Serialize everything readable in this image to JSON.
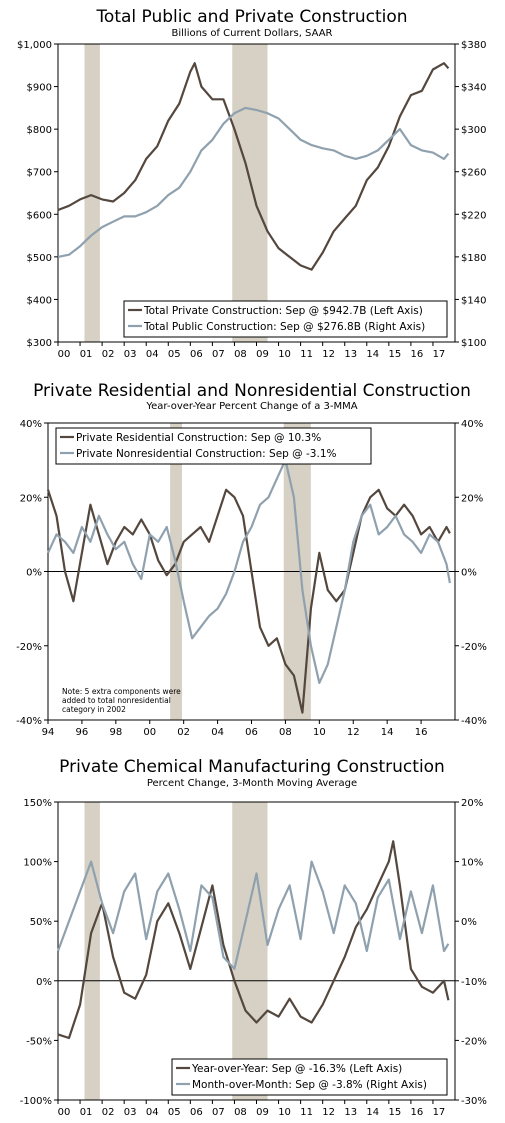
{
  "colors": {
    "primary": "#54473e",
    "secondary": "#8fa1ae",
    "recession": "#d6d1c4",
    "axis": "#000000"
  },
  "chart_data": [
    {
      "type": "line",
      "title": "Total Public and Private Construction",
      "subtitle": "Billions of Current Dollars, SAAR",
      "xlabel": "",
      "ylabel": "",
      "x_ticks": [
        "00",
        "01",
        "02",
        "03",
        "04",
        "05",
        "06",
        "07",
        "08",
        "09",
        "10",
        "11",
        "12",
        "13",
        "14",
        "15",
        "16",
        "17"
      ],
      "xlim": [
        2000.0,
        2018.0
      ],
      "left_axis": {
        "ylim": [
          300,
          1000
        ],
        "ticks": [
          "$300",
          "$400",
          "$500",
          "$600",
          "$700",
          "$800",
          "$900",
          "$1,000"
        ]
      },
      "right_axis": {
        "ylim": [
          100,
          380
        ],
        "ticks": [
          "$100",
          "$140",
          "$180",
          "$220",
          "$260",
          "$300",
          "$340",
          "$380"
        ]
      },
      "recessions": [
        [
          2001.2,
          2001.9
        ],
        [
          2007.9,
          2009.5
        ]
      ],
      "legend_placement": "bottom-right",
      "series": [
        {
          "name": "Total Private Construction: Sep @ $942.7B (Left Axis)",
          "axis": "left",
          "color": "primary",
          "x": [
            2000.0,
            2000.5,
            2001.0,
            2001.5,
            2002.0,
            2002.5,
            2003.0,
            2003.5,
            2004.0,
            2004.5,
            2005.0,
            2005.5,
            2006.0,
            2006.2,
            2006.5,
            2007.0,
            2007.5,
            2008.0,
            2008.5,
            2009.0,
            2009.5,
            2010.0,
            2010.5,
            2011.0,
            2011.5,
            2012.0,
            2012.5,
            2013.0,
            2013.5,
            2014.0,
            2014.5,
            2015.0,
            2015.5,
            2016.0,
            2016.5,
            2017.0,
            2017.5,
            2017.7
          ],
          "values": [
            610,
            620,
            635,
            645,
            635,
            630,
            650,
            680,
            730,
            760,
            820,
            860,
            935,
            955,
            900,
            870,
            870,
            800,
            720,
            620,
            560,
            520,
            500,
            480,
            470,
            510,
            560,
            590,
            620,
            680,
            710,
            760,
            830,
            880,
            890,
            940,
            955,
            943
          ]
        },
        {
          "name": "Total Public Construction: Sep @ $276.8B (Right Axis)",
          "axis": "right",
          "color": "secondary",
          "x": [
            2000.0,
            2000.5,
            2001.0,
            2001.5,
            2002.0,
            2002.5,
            2003.0,
            2003.5,
            2004.0,
            2004.5,
            2005.0,
            2005.5,
            2006.0,
            2006.5,
            2007.0,
            2007.5,
            2008.0,
            2008.5,
            2009.0,
            2009.5,
            2010.0,
            2010.5,
            2011.0,
            2011.5,
            2012.0,
            2012.5,
            2013.0,
            2013.5,
            2014.0,
            2014.5,
            2015.0,
            2015.5,
            2016.0,
            2016.5,
            2017.0,
            2017.5,
            2017.7
          ],
          "values": [
            180,
            182,
            190,
            200,
            208,
            213,
            218,
            218,
            222,
            228,
            238,
            245,
            260,
            280,
            290,
            305,
            315,
            320,
            318,
            315,
            310,
            300,
            290,
            285,
            282,
            280,
            275,
            272,
            275,
            280,
            290,
            300,
            285,
            280,
            278,
            272,
            277
          ]
        }
      ]
    },
    {
      "type": "line",
      "title": "Private Residential and Nonresidential Construction",
      "subtitle": "Year-over-Year Percent Change of a 3-MMA",
      "xlabel": "",
      "ylabel": "",
      "x_ticks": [
        "94",
        "96",
        "98",
        "00",
        "02",
        "04",
        "06",
        "08",
        "10",
        "12",
        "14",
        "16"
      ],
      "xlim": [
        1994.0,
        2018.0
      ],
      "left_axis": {
        "ylim": [
          -40,
          40
        ],
        "ticks": [
          "-40%",
          "-20%",
          "0%",
          "20%",
          "40%"
        ]
      },
      "right_axis": {
        "ylim": [
          -40,
          40
        ],
        "ticks": [
          "-40%",
          "-20%",
          "0%",
          "20%",
          "40%"
        ]
      },
      "recessions": [
        [
          2001.2,
          2001.9
        ],
        [
          2007.9,
          2009.5
        ]
      ],
      "legend_placement": "top-left",
      "note": "Note: 5 extra components were added to total nonresidential category in 2002",
      "series": [
        {
          "name": "Private Residential Construction: Sep @ 10.3%",
          "color": "primary",
          "x": [
            1994.0,
            1994.5,
            1995.0,
            1995.5,
            1996.0,
            1996.5,
            1997.0,
            1997.5,
            1998.0,
            1998.5,
            1999.0,
            1999.5,
            2000.0,
            2000.5,
            2001.0,
            2001.5,
            2002.0,
            2002.5,
            2003.0,
            2003.5,
            2004.0,
            2004.5,
            2005.0,
            2005.5,
            2006.0,
            2006.5,
            2007.0,
            2007.5,
            2008.0,
            2008.5,
            2009.0,
            2009.5,
            2010.0,
            2010.5,
            2011.0,
            2011.5,
            2012.0,
            2012.5,
            2013.0,
            2013.5,
            2014.0,
            2014.5,
            2015.0,
            2015.5,
            2016.0,
            2016.5,
            2017.0,
            2017.5,
            2017.7
          ],
          "values": [
            22,
            15,
            0,
            -8,
            5,
            18,
            10,
            2,
            8,
            12,
            10,
            14,
            10,
            3,
            -1,
            2,
            8,
            10,
            12,
            8,
            15,
            22,
            20,
            15,
            0,
            -15,
            -20,
            -18,
            -25,
            -28,
            -38,
            -10,
            5,
            -5,
            -8,
            -5,
            5,
            15,
            20,
            22,
            17,
            15,
            18,
            15,
            10,
            12,
            8,
            12,
            10.3
          ]
        },
        {
          "name": "Private Nonresidential Construction: Sep @ -3.1%",
          "color": "secondary",
          "x": [
            1994.0,
            1994.5,
            1995.0,
            1995.5,
            1996.0,
            1996.5,
            1997.0,
            1997.5,
            1998.0,
            1998.5,
            1999.0,
            1999.5,
            2000.0,
            2000.5,
            2001.0,
            2001.5,
            2002.0,
            2002.5,
            2003.0,
            2003.5,
            2004.0,
            2004.5,
            2005.0,
            2005.5,
            2006.0,
            2006.5,
            2007.0,
            2007.5,
            2008.0,
            2008.5,
            2009.0,
            2009.5,
            2010.0,
            2010.5,
            2011.0,
            2011.5,
            2012.0,
            2012.5,
            2013.0,
            2013.5,
            2014.0,
            2014.5,
            2015.0,
            2015.5,
            2016.0,
            2016.5,
            2017.0,
            2017.5,
            2017.7
          ],
          "values": [
            5,
            10,
            8,
            5,
            12,
            8,
            15,
            10,
            6,
            8,
            2,
            -2,
            10,
            8,
            12,
            3,
            -8,
            -18,
            -15,
            -12,
            -10,
            -6,
            0,
            8,
            12,
            18,
            20,
            25,
            30,
            20,
            -5,
            -20,
            -30,
            -25,
            -15,
            -5,
            8,
            15,
            18,
            10,
            12,
            15,
            10,
            8,
            5,
            10,
            8,
            2,
            -3.1
          ]
        }
      ]
    },
    {
      "type": "line",
      "title": "Private Chemical Manufacturing Construction",
      "subtitle": "Percent Change, 3-Month Moving Average",
      "xlabel": "",
      "ylabel": "",
      "x_ticks": [
        "00",
        "01",
        "02",
        "03",
        "04",
        "05",
        "06",
        "07",
        "08",
        "09",
        "10",
        "11",
        "12",
        "13",
        "14",
        "15",
        "16",
        "17"
      ],
      "xlim": [
        2000.0,
        2018.0
      ],
      "left_axis": {
        "ylim": [
          -100,
          150
        ],
        "ticks": [
          "-100%",
          "-50%",
          "0%",
          "50%",
          "100%",
          "150%"
        ]
      },
      "right_axis": {
        "ylim": [
          -30,
          20
        ],
        "ticks": [
          "-30%",
          "-20%",
          "-10%",
          "0%",
          "10%",
          "20%"
        ]
      },
      "recessions": [
        [
          2001.2,
          2001.9
        ],
        [
          2007.9,
          2009.5
        ]
      ],
      "legend_placement": "bottom-right",
      "series": [
        {
          "name": "Year-over-Year: Sep @ -16.3% (Left Axis)",
          "axis": "left",
          "color": "primary",
          "x": [
            2000.0,
            2000.5,
            2001.0,
            2001.5,
            2002.0,
            2002.5,
            2003.0,
            2003.5,
            2004.0,
            2004.5,
            2005.0,
            2005.5,
            2006.0,
            2006.5,
            2007.0,
            2007.5,
            2008.0,
            2008.5,
            2009.0,
            2009.5,
            2010.0,
            2010.5,
            2011.0,
            2011.5,
            2012.0,
            2012.5,
            2013.0,
            2013.5,
            2014.0,
            2014.5,
            2015.0,
            2015.2,
            2015.5,
            2016.0,
            2016.5,
            2017.0,
            2017.5,
            2017.7
          ],
          "values": [
            -45,
            -48,
            -20,
            40,
            65,
            20,
            -10,
            -15,
            5,
            50,
            65,
            40,
            10,
            45,
            80,
            30,
            0,
            -25,
            -35,
            -25,
            -30,
            -15,
            -30,
            -35,
            -20,
            0,
            20,
            45,
            60,
            80,
            100,
            117,
            80,
            10,
            -5,
            -10,
            0,
            -16.3
          ]
        },
        {
          "name": "Month-over-Month: Sep @ -3.8% (Right Axis)",
          "axis": "right",
          "color": "secondary",
          "x": [
            2000.0,
            2000.5,
            2001.0,
            2001.5,
            2002.0,
            2002.5,
            2003.0,
            2003.5,
            2004.0,
            2004.5,
            2005.0,
            2005.5,
            2006.0,
            2006.5,
            2007.0,
            2007.5,
            2008.0,
            2008.5,
            2009.0,
            2009.5,
            2010.0,
            2010.5,
            2011.0,
            2011.5,
            2012.0,
            2012.5,
            2013.0,
            2013.5,
            2014.0,
            2014.5,
            2015.0,
            2015.5,
            2016.0,
            2016.5,
            2017.0,
            2017.5,
            2017.7
          ],
          "values": [
            -5,
            0,
            5,
            10,
            3,
            -2,
            5,
            8,
            -3,
            5,
            8,
            2,
            -5,
            6,
            4,
            -6,
            -8,
            0,
            8,
            -4,
            2,
            6,
            -3,
            10,
            5,
            -2,
            6,
            3,
            -5,
            4,
            7,
            -3,
            5,
            -2,
            6,
            -5,
            -3.8
          ]
        }
      ]
    }
  ]
}
